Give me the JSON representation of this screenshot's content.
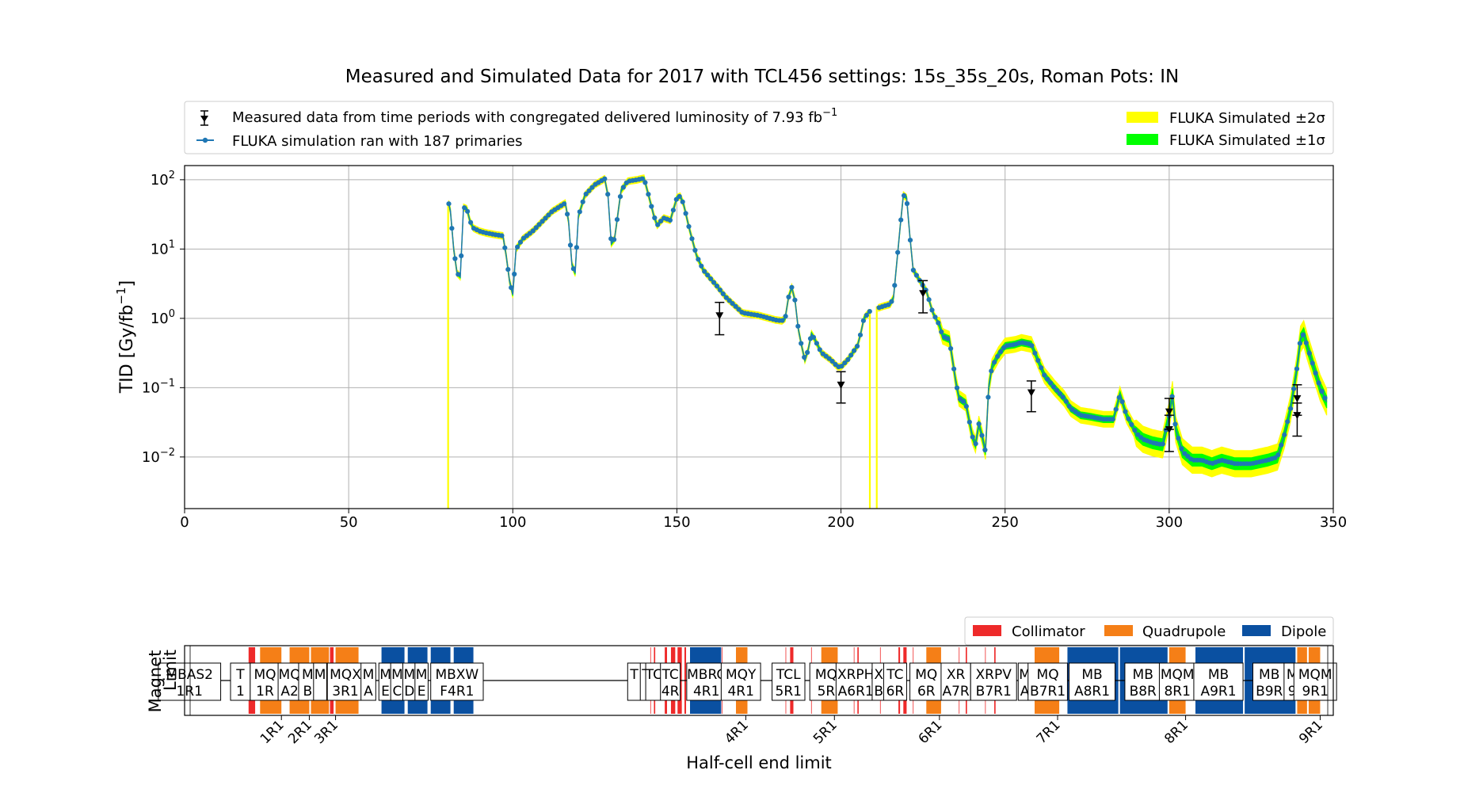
{
  "chart_data": [
    {
      "type": "line",
      "title": "Measured and Simulated Data for 2017 with TCL456 settings: 15s_35s_20s, Roman Pots: IN",
      "xlabel": "",
      "ylabel": "TID [Gy/fb",
      "ylabel_sup": "−1",
      "ylabel_tail": "]",
      "xlim": [
        0,
        350
      ],
      "ylim": [
        0.0018,
        160
      ],
      "yscale": "log",
      "grid": true,
      "legend_position": "top",
      "x_ticks": [
        "0",
        "50",
        "100",
        "150",
        "200",
        "250",
        "300",
        "350"
      ],
      "y_ticks": [
        {
          "base": "10",
          "exp": "2",
          "value": 100
        },
        {
          "base": "10",
          "exp": "1",
          "value": 10
        },
        {
          "base": "10",
          "exp": "0",
          "value": 1
        },
        {
          "base": "10",
          "exp": "−1",
          "value": 0.1
        },
        {
          "base": "10",
          "exp": "−2",
          "value": 0.01
        }
      ],
      "legend": {
        "measured": "Measured data from time periods with congregated delivered luminosity of 7.93 fb",
        "measured_sup": "−1",
        "fluka": "FLUKA simulation ran with 187 primaries",
        "band2": "FLUKA Simulated ±2σ",
        "band1": "FLUKA Simulated ±1σ"
      },
      "colors": {
        "sim": "#1f77b4",
        "band2": "#ffff00",
        "band1": "#00ff00",
        "measured": "#000000"
      },
      "simulation_keypoints": [
        [
          80.5,
          45
        ],
        [
          81,
          35
        ],
        [
          82,
          10
        ],
        [
          83,
          4.5
        ],
        [
          84,
          4
        ],
        [
          85,
          40
        ],
        [
          86,
          38
        ],
        [
          87,
          25
        ],
        [
          88,
          20
        ],
        [
          90,
          18
        ],
        [
          92,
          17
        ],
        [
          95,
          16
        ],
        [
          97,
          15.5
        ],
        [
          98,
          8
        ],
        [
          99,
          3.5
        ],
        [
          100,
          2.2
        ],
        [
          101,
          10
        ],
        [
          103,
          14
        ],
        [
          106,
          18
        ],
        [
          110,
          28
        ],
        [
          112,
          35
        ],
        [
          116,
          46
        ],
        [
          117,
          25
        ],
        [
          118,
          6
        ],
        [
          119,
          4.5
        ],
        [
          120,
          30
        ],
        [
          122,
          60
        ],
        [
          125,
          85
        ],
        [
          128,
          103
        ],
        [
          129,
          60
        ],
        [
          130,
          12
        ],
        [
          131,
          14
        ],
        [
          133,
          70
        ],
        [
          135,
          95
        ],
        [
          138,
          100
        ],
        [
          140,
          105
        ],
        [
          141,
          70
        ],
        [
          143,
          30
        ],
        [
          144,
          22
        ],
        [
          145,
          25
        ],
        [
          146,
          28
        ],
        [
          148,
          26
        ],
        [
          150,
          55
        ],
        [
          151,
          58
        ],
        [
          152,
          45
        ],
        [
          154,
          18
        ],
        [
          156,
          8
        ],
        [
          158,
          5
        ],
        [
          162,
          3
        ],
        [
          165,
          2
        ],
        [
          170,
          1.2
        ],
        [
          175,
          1.1
        ],
        [
          180,
          0.95
        ],
        [
          182,
          0.92
        ],
        [
          183,
          1
        ],
        [
          184,
          2
        ],
        [
          185,
          2.8
        ],
        [
          186,
          1.8
        ],
        [
          187,
          0.7
        ],
        [
          188,
          0.4
        ],
        [
          189,
          0.25
        ],
        [
          190,
          0.35
        ],
        [
          191,
          0.6
        ],
        [
          192,
          0.5
        ],
        [
          194,
          0.32
        ],
        [
          197,
          0.25
        ],
        [
          199,
          0.2
        ],
        [
          200,
          0.2
        ],
        [
          202,
          0.25
        ],
        [
          205,
          0.4
        ],
        [
          206,
          0.6
        ],
        [
          207,
          1
        ],
        [
          209,
          1.3
        ],
        [
          213,
          1.5
        ],
        [
          215,
          1.6
        ],
        [
          216,
          2
        ],
        [
          218,
          20
        ],
        [
          219,
          60
        ],
        [
          220,
          55
        ],
        [
          221,
          15
        ],
        [
          222,
          5
        ],
        [
          224,
          3.5
        ],
        [
          226,
          2.5
        ],
        [
          228,
          1.2
        ],
        [
          230,
          0.8
        ],
        [
          231,
          0.55
        ],
        [
          233,
          0.5
        ],
        [
          234,
          0.25
        ],
        [
          235,
          0.12
        ],
        [
          236,
          0.07
        ],
        [
          238,
          0.06
        ],
        [
          240,
          0.02
        ],
        [
          241,
          0.015
        ],
        [
          242,
          0.03
        ],
        [
          243,
          0.02
        ],
        [
          244,
          0.012
        ],
        [
          245,
          0.1
        ],
        [
          246,
          0.2
        ],
        [
          248,
          0.3
        ],
        [
          250,
          0.4
        ],
        [
          253,
          0.42
        ],
        [
          255,
          0.45
        ],
        [
          258,
          0.42
        ],
        [
          260,
          0.25
        ],
        [
          262,
          0.15
        ],
        [
          265,
          0.1
        ],
        [
          268,
          0.07
        ],
        [
          270,
          0.05
        ],
        [
          273,
          0.04
        ],
        [
          276,
          0.038
        ],
        [
          280,
          0.035
        ],
        [
          283,
          0.035
        ],
        [
          285,
          0.08
        ],
        [
          287,
          0.04
        ],
        [
          290,
          0.022
        ],
        [
          292,
          0.018
        ],
        [
          295,
          0.016
        ],
        [
          298,
          0.015
        ],
        [
          300,
          0.04
        ],
        [
          301,
          0.08
        ],
        [
          302,
          0.025
        ],
        [
          304,
          0.012
        ],
        [
          307,
          0.009
        ],
        [
          310,
          0.009
        ],
        [
          313,
          0.008
        ],
        [
          316,
          0.009
        ],
        [
          320,
          0.008
        ],
        [
          325,
          0.008
        ],
        [
          330,
          0.009
        ],
        [
          333,
          0.01
        ],
        [
          335,
          0.02
        ],
        [
          337,
          0.05
        ],
        [
          339,
          0.2
        ],
        [
          340,
          0.5
        ],
        [
          341,
          0.6
        ],
        [
          342,
          0.4
        ],
        [
          344,
          0.2
        ],
        [
          346,
          0.1
        ],
        [
          348,
          0.062
        ]
      ],
      "simulation_gaps": [
        [
          208.8,
          211
        ]
      ],
      "measured_points": [
        {
          "x": 163,
          "y": 1.1,
          "lo": 0.58,
          "hi": 1.7
        },
        {
          "x": 200,
          "y": 0.11,
          "lo": 0.06,
          "hi": 0.17
        },
        {
          "x": 225,
          "y": 2.3,
          "lo": 1.2,
          "hi": 3.5
        },
        {
          "x": 258,
          "y": 0.085,
          "lo": 0.045,
          "hi": 0.125
        },
        {
          "x": 300,
          "y": 0.045,
          "lo": 0.025,
          "hi": 0.07
        },
        {
          "x": 300,
          "y": 0.025,
          "lo": 0.012,
          "hi": 0.04
        },
        {
          "x": 339,
          "y": 0.07,
          "lo": 0.04,
          "hi": 0.11
        },
        {
          "x": 339,
          "y": 0.04,
          "lo": 0.02,
          "hi": 0.06
        }
      ]
    },
    {
      "type": "table",
      "ylabel_line1": "Magnet",
      "ylabel_line2": "Limit",
      "xlabel": "Half-cell end limit",
      "legend": [
        "Collimator",
        "Quadrupole",
        "Dipole"
      ],
      "colors": {
        "collimator": "#ee2a2a",
        "quadrupole": "#f57f17",
        "dipole": "#0a50a1"
      },
      "halfcell_ticks": [
        {
          "label": "1R1",
          "x": 29.5
        },
        {
          "label": "2R1",
          "x": 38
        },
        {
          "label": "3R1",
          "x": 46
        },
        {
          "label": "4R1",
          "x": 171
        },
        {
          "label": "5R1",
          "x": 198
        },
        {
          "label": "6R1",
          "x": 230
        },
        {
          "label": "7R1",
          "x": 266
        },
        {
          "label": "8R1",
          "x": 305
        },
        {
          "label": "9R1",
          "x": 346
        }
      ],
      "segments": [
        {
          "type": "collimator",
          "x0": 19.5,
          "x1": 21.5
        },
        {
          "type": "quadrupole",
          "x0": 23,
          "x1": 29.5
        },
        {
          "type": "quadrupole",
          "x0": 32,
          "x1": 38
        },
        {
          "type": "quadrupole",
          "x0": 38.5,
          "x1": 44
        },
        {
          "type": "collimator",
          "x0": 44.3,
          "x1": 45.4
        },
        {
          "type": "quadrupole",
          "x0": 46,
          "x1": 53
        },
        {
          "type": "dipole",
          "x0": 60,
          "x1": 67
        },
        {
          "type": "dipole",
          "x0": 68,
          "x1": 74
        },
        {
          "type": "dipole",
          "x0": 75,
          "x1": 81
        },
        {
          "type": "dipole",
          "x0": 82,
          "x1": 88
        },
        {
          "type": "collimator",
          "x0": 143,
          "x1": 143.4
        },
        {
          "type": "collimator",
          "x0": 146.3,
          "x1": 147
        },
        {
          "type": "collimator",
          "x0": 148.2,
          "x1": 149.5
        },
        {
          "type": "collimator",
          "x0": 150.2,
          "x1": 151.5
        },
        {
          "type": "collimator",
          "x0": 152.3,
          "x1": 152.8
        },
        {
          "type": "dipole",
          "x0": 154,
          "x1": 163.5
        },
        {
          "type": "quadrupole",
          "x0": 168,
          "x1": 171.5
        },
        {
          "type": "collimator",
          "x0": 184.5,
          "x1": 185.5
        },
        {
          "type": "quadrupole",
          "x0": 194,
          "x1": 199
        },
        {
          "type": "collimator",
          "x0": 205,
          "x1": 205.4
        },
        {
          "type": "collimator",
          "x0": 217.5,
          "x1": 218
        },
        {
          "type": "collimator",
          "x0": 219,
          "x1": 220
        },
        {
          "type": "quadrupole",
          "x0": 226,
          "x1": 230.5
        },
        {
          "type": "collimator",
          "x0": 238,
          "x1": 238.4
        },
        {
          "type": "collimator",
          "x0": 246.7,
          "x1": 247.1
        },
        {
          "type": "quadrupole",
          "x0": 259,
          "x1": 266.5
        },
        {
          "type": "dipole",
          "x0": 269,
          "x1": 284.5
        },
        {
          "type": "dipole",
          "x0": 285,
          "x1": 299.5
        },
        {
          "type": "quadrupole",
          "x0": 300,
          "x1": 305
        },
        {
          "type": "dipole",
          "x0": 308,
          "x1": 322.5
        },
        {
          "type": "dipole",
          "x0": 323,
          "x1": 338.5
        },
        {
          "type": "quadrupole",
          "x0": 339,
          "x1": 342
        },
        {
          "type": "quadrupole",
          "x0": 342.5,
          "x1": 346
        }
      ],
      "labels": [
        {
          "l1": "MBAS2",
          "l2": "1R1",
          "x": 1.5,
          "w": 19
        },
        {
          "l1": "T",
          "l2": "1",
          "x": 17,
          "w": 6
        },
        {
          "l1": "MQ",
          "l2": "1R",
          "x": 24.5,
          "w": 9
        },
        {
          "l1": "MQ",
          "l2": "A2",
          "x": 32,
          "w": 7
        },
        {
          "l1": "M",
          "l2": "B",
          "x": 37.5,
          "w": 5.5
        },
        {
          "l1": "M",
          "l2": "",
          "x": 41.3,
          "w": 4
        },
        {
          "l1": "MQX",
          "l2": "3R1",
          "x": 49,
          "w": 11
        },
        {
          "l1": "M",
          "l2": "A",
          "x": 56,
          "w": 4.5
        },
        {
          "l1": "M",
          "l2": "E",
          "x": 61.2,
          "w": 4
        },
        {
          "l1": "M",
          "l2": "C",
          "x": 64.8,
          "w": 4
        },
        {
          "l1": "M",
          "l2": "D",
          "x": 68.5,
          "w": 4
        },
        {
          "l1": "M",
          "l2": "E",
          "x": 72.2,
          "w": 4
        },
        {
          "l1": "MBXW",
          "l2": "F4R1",
          "x": 83,
          "w": 16
        },
        {
          "l1": "T",
          "l2": "",
          "x": 137,
          "w": 4
        },
        {
          "l1": "T",
          "l2": "",
          "x": 140.6,
          "w": 3.5
        },
        {
          "l1": "TC",
          "l2": "",
          "x": 143,
          "w": 5
        },
        {
          "l1": "TC",
          "l2": "4R",
          "x": 148,
          "w": 6
        },
        {
          "l1": "MBRC",
          "l2": "4R1",
          "x": 159,
          "w": 12
        },
        {
          "l1": "MQY",
          "l2": "4R1",
          "x": 169.5,
          "w": 12
        },
        {
          "l1": "TCL",
          "l2": "5R1",
          "x": 184,
          "w": 10
        },
        {
          "l1": "MQ",
          "l2": "5R",
          "x": 195.5,
          "w": 10
        },
        {
          "l1": "XRPH",
          "l2": "A6R1",
          "x": 204.5,
          "w": 12
        },
        {
          "l1": "X",
          "l2": "B",
          "x": 211.5,
          "w": 4
        },
        {
          "l1": "TC",
          "l2": "6R",
          "x": 216.5,
          "w": 7
        },
        {
          "l1": "MQ",
          "l2": "6R",
          "x": 226,
          "w": 10
        },
        {
          "l1": "XR",
          "l2": "A7R",
          "x": 235,
          "w": 9
        },
        {
          "l1": "XRPV",
          "l2": "B7R1",
          "x": 246.5,
          "w": 14
        },
        {
          "l1": "M",
          "l2": "A",
          "x": 256,
          "w": 4
        },
        {
          "l1": "MQ",
          "l2": "B7R1",
          "x": 263,
          "w": 12
        },
        {
          "l1": "MB",
          "l2": "A8R1",
          "x": 276.5,
          "w": 14
        },
        {
          "l1": "MB",
          "l2": "B8R",
          "x": 292,
          "w": 11
        },
        {
          "l1": "MQM",
          "l2": "8R1",
          "x": 302.5,
          "w": 11
        },
        {
          "l1": "MB",
          "l2": "A9R1",
          "x": 315,
          "w": 15
        },
        {
          "l1": "MB",
          "l2": "B9R",
          "x": 330.5,
          "w": 10
        },
        {
          "l1": "M",
          "l2": "9",
          "x": 337.5,
          "w": 5
        },
        {
          "l1": "MQM",
          "l2": "9R1",
          "x": 344.5,
          "w": 13
        }
      ]
    }
  ]
}
